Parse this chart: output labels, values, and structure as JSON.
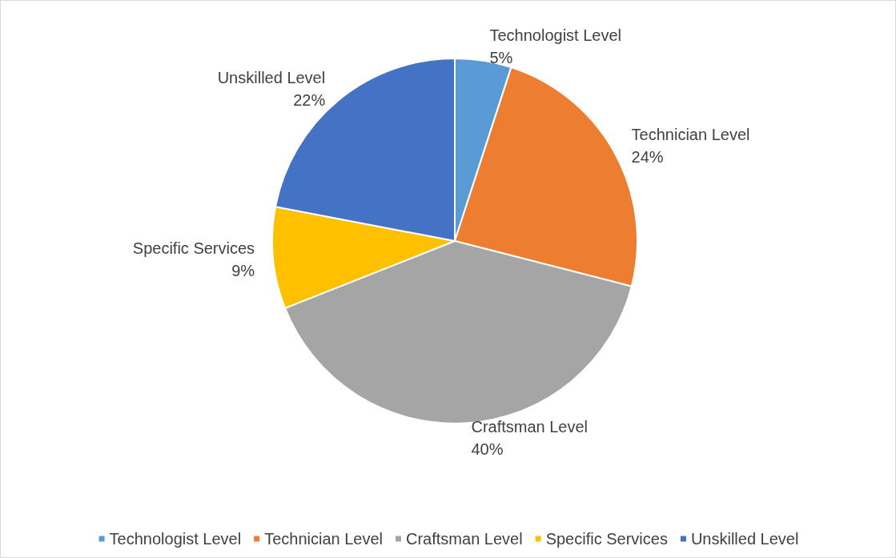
{
  "chart_data": {
    "type": "pie",
    "categories": [
      "Technologist Level",
      "Technician Level",
      "Craftsman Level",
      "Specific Services",
      "Unskilled Level"
    ],
    "values": [
      5,
      24,
      40,
      9,
      22
    ],
    "value_labels": [
      "5%",
      "24%",
      "40%",
      "9%",
      "22%"
    ],
    "colors": [
      "#5b9bd5",
      "#ed7d31",
      "#a5a5a5",
      "#ffc000",
      "#4472c4"
    ],
    "legend": "bottom"
  }
}
